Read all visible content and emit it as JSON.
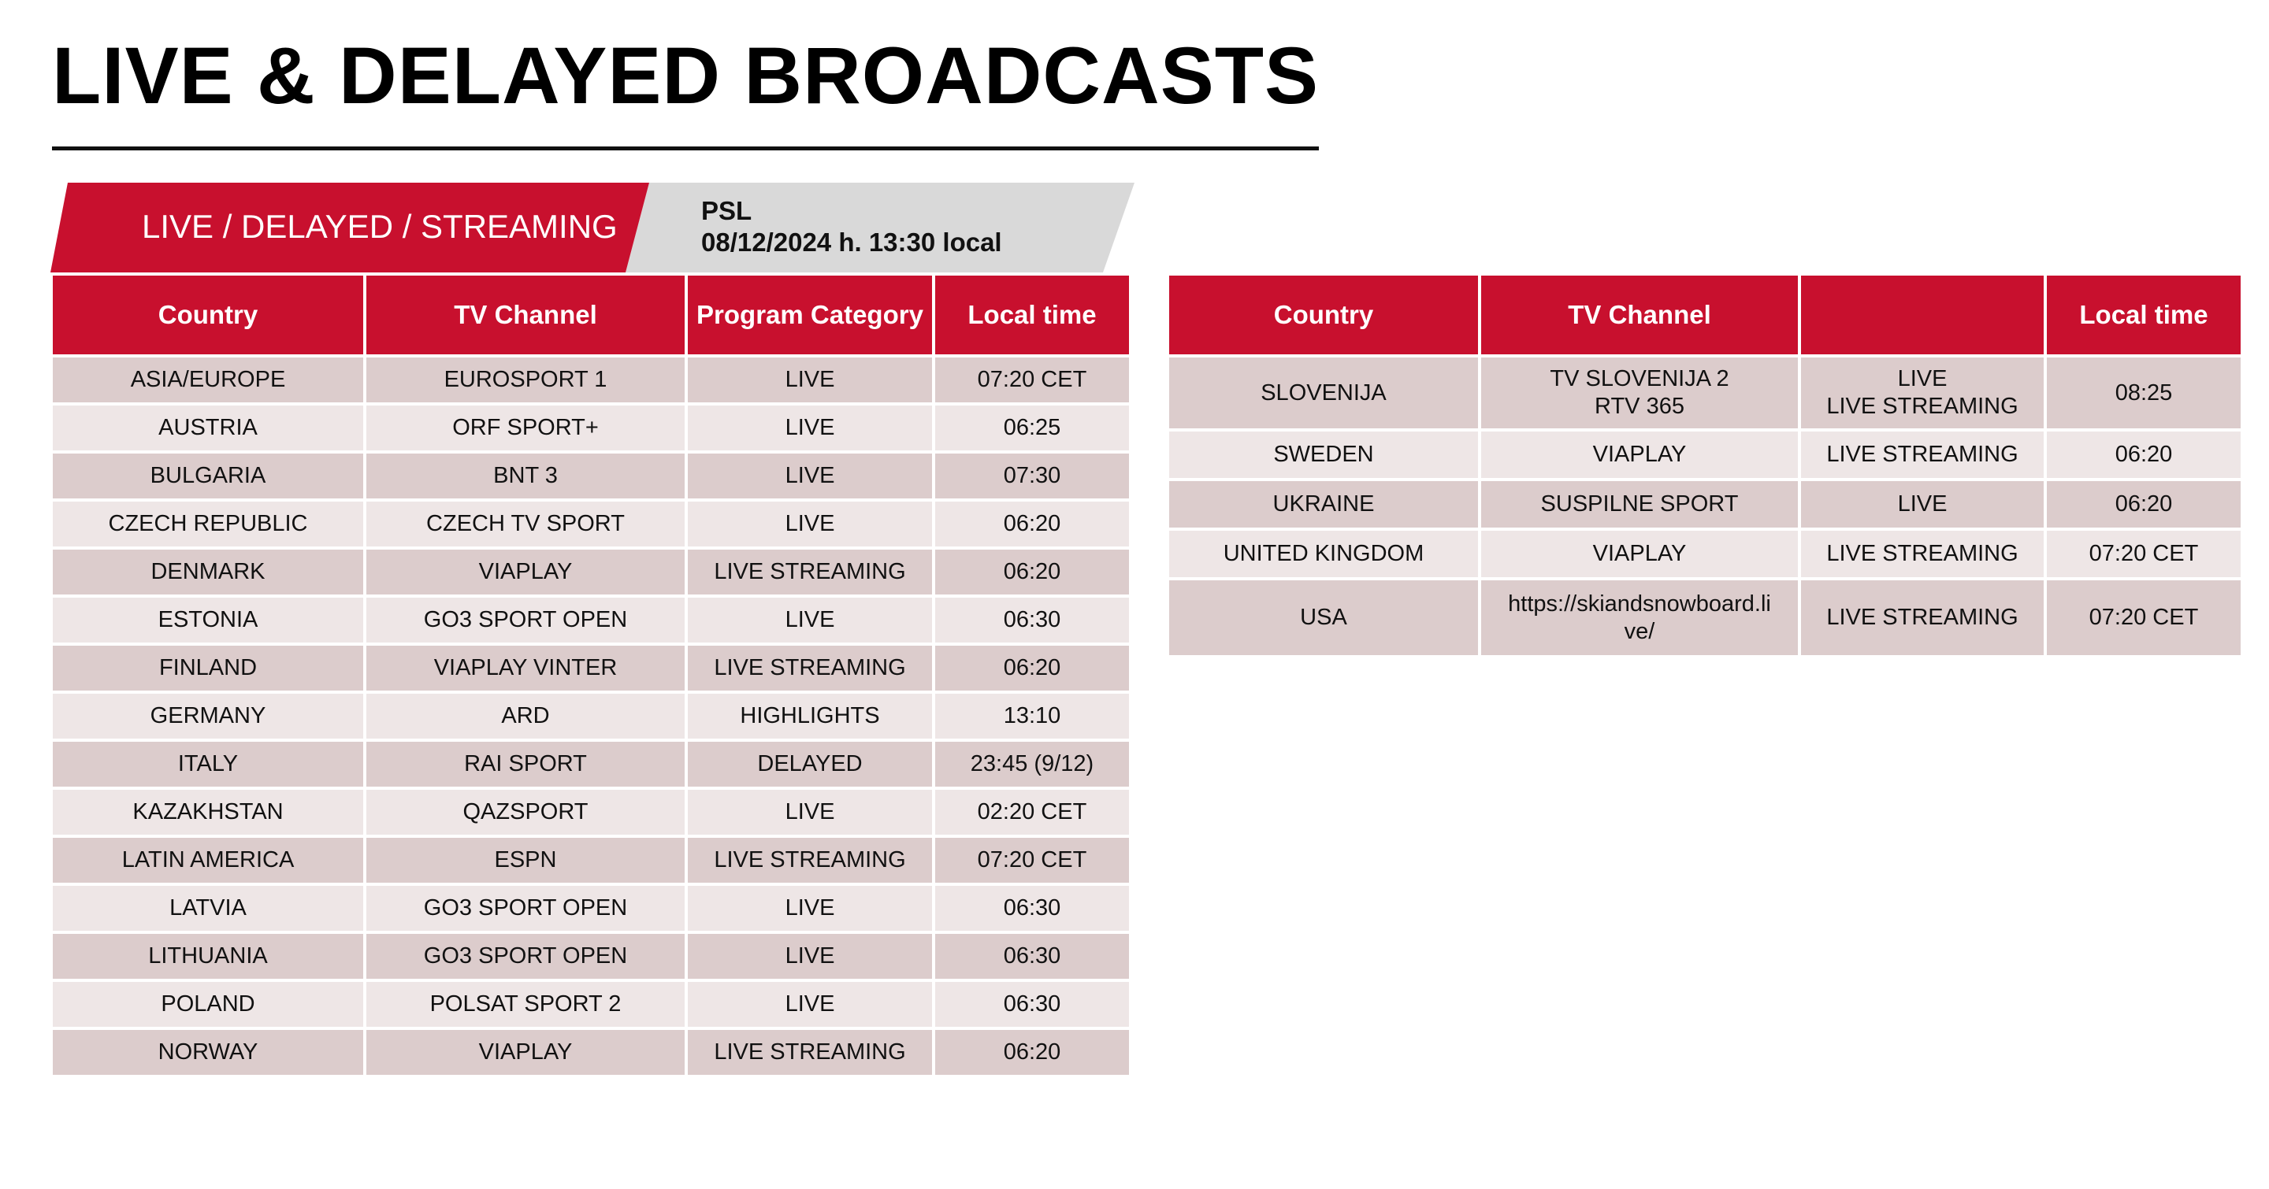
{
  "title": "LIVE & DELAYED BROADCASTS",
  "banner": {
    "label": "LIVE / DELAYED / STREAMING",
    "event": "PSL",
    "datetime": "08/12/2024 h. 13:30 local"
  },
  "colors": {
    "accent": "#c8102e",
    "row_dark": "#dccccc",
    "row_light": "#eee6e6",
    "banner_grey": "#d9d9d9"
  },
  "left_table": {
    "headers": [
      "Country",
      "TV Channel",
      "Program Category",
      "Local time"
    ],
    "rows": [
      [
        "ASIA/EUROPE",
        "EUROSPORT 1",
        "LIVE",
        "07:20 CET"
      ],
      [
        "AUSTRIA",
        "ORF SPORT+",
        "LIVE",
        "06:25"
      ],
      [
        "BULGARIA",
        "BNT 3",
        "LIVE",
        "07:30"
      ],
      [
        "CZECH REPUBLIC",
        "CZECH TV SPORT",
        "LIVE",
        "06:20"
      ],
      [
        "DENMARK",
        "VIAPLAY",
        "LIVE STREAMING",
        "06:20"
      ],
      [
        "ESTONIA",
        "GO3 SPORT OPEN",
        "LIVE",
        "06:30"
      ],
      [
        "FINLAND",
        "VIAPLAY VINTER",
        "LIVE STREAMING",
        "06:20"
      ],
      [
        "GERMANY",
        "ARD",
        "HIGHLIGHTS",
        "13:10"
      ],
      [
        "ITALY",
        "RAI SPORT",
        "DELAYED",
        "23:45 (9/12)"
      ],
      [
        "KAZAKHSTAN",
        "QAZSPORT",
        "LIVE",
        "02:20 CET"
      ],
      [
        "LATIN AMERICA",
        "ESPN",
        "LIVE STREAMING",
        "07:20 CET"
      ],
      [
        "LATVIA",
        "GO3 SPORT OPEN",
        "LIVE",
        "06:30"
      ],
      [
        "LITHUANIA",
        "GO3 SPORT OPEN",
        "LIVE",
        "06:30"
      ],
      [
        "POLAND",
        "POLSAT SPORT 2",
        "LIVE",
        "06:30"
      ],
      [
        "NORWAY",
        "VIAPLAY",
        "LIVE STREAMING",
        "06:20"
      ]
    ]
  },
  "right_table": {
    "headers": [
      "Country",
      "TV Channel",
      "",
      "Local time"
    ],
    "rows": [
      [
        "SLOVENIJA",
        "TV SLOVENIJA 2\nRTV 365",
        "LIVE\nLIVE STREAMING",
        "08:25"
      ],
      [
        "SWEDEN",
        "VIAPLAY",
        "LIVE STREAMING",
        "06:20"
      ],
      [
        "UKRAINE",
        "SUSPILNE SPORT",
        "LIVE",
        "06:20"
      ],
      [
        "UNITED KINGDOM",
        "VIAPLAY",
        "LIVE STREAMING",
        "07:20 CET"
      ],
      [
        "USA",
        "https://skiandsnowboard.li\nve/",
        "LIVE STREAMING",
        "07:20 CET"
      ]
    ]
  }
}
